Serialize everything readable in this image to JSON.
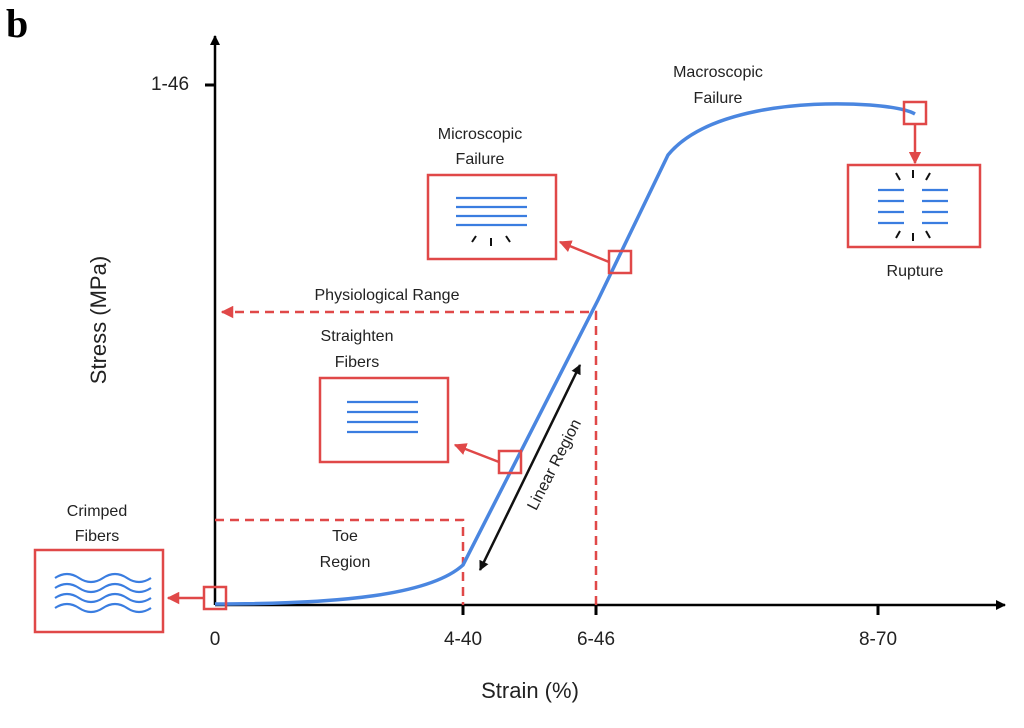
{
  "panel_label": "b",
  "axes": {
    "x_label": "Strain (%)",
    "y_label": "Stress (MPa)",
    "x_ticks": [
      "0",
      "4-40",
      "6-46",
      "8-70"
    ],
    "y_ticks": [
      "1-46"
    ]
  },
  "annotations": {
    "crimped_fibers": [
      "Crimped",
      "Fibers"
    ],
    "toe_region": [
      "Toe",
      "Region"
    ],
    "straighten_fibers": [
      "Straighten",
      "Fibers"
    ],
    "microscopic_failure": [
      "Microscopic",
      "Failure"
    ],
    "macroscopic_failure": [
      "Macroscopic",
      "Failure"
    ],
    "rupture": "Rupture",
    "physiological_range": "Physiological Range",
    "linear_region": "Linear Region"
  }
}
